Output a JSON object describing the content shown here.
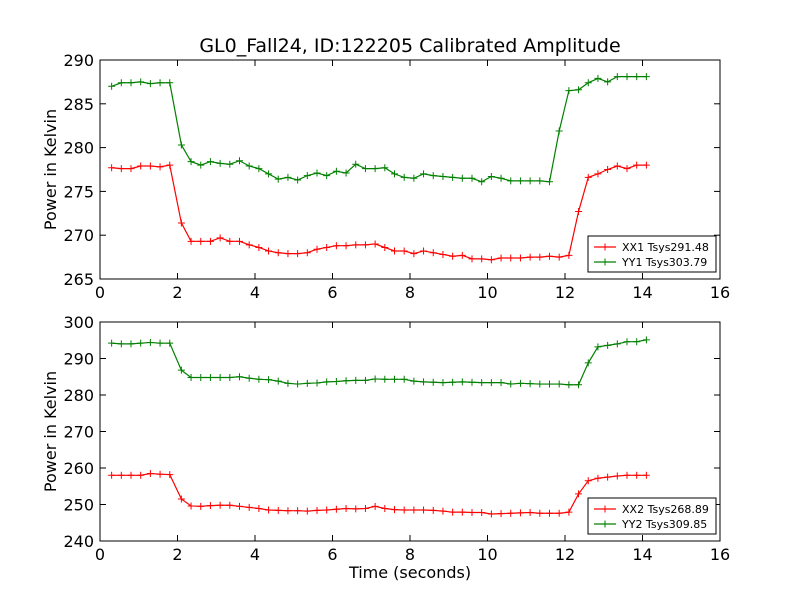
{
  "title": "GL0_Fall24, ID:122205 Calibrated Amplitude",
  "chart_data": [
    {
      "type": "line",
      "ylabel": "Power in Kelvin",
      "xlim": [
        0,
        16
      ],
      "ylim": [
        265,
        290
      ],
      "xticks": [
        0,
        2,
        4,
        6,
        8,
        10,
        12,
        14,
        16
      ],
      "yticks": [
        265,
        270,
        275,
        280,
        285,
        290
      ],
      "legend_loc": "lower-right",
      "series": [
        {
          "name": "XX1 Tsys291.48",
          "color": "#ff0000",
          "x": [
            0.3,
            0.55,
            0.8,
            1.05,
            1.3,
            1.55,
            1.8,
            2.1,
            2.35,
            2.6,
            2.85,
            3.1,
            3.35,
            3.6,
            3.85,
            4.1,
            4.35,
            4.6,
            4.85,
            5.1,
            5.35,
            5.6,
            5.85,
            6.1,
            6.35,
            6.6,
            6.85,
            7.1,
            7.35,
            7.6,
            7.85,
            8.1,
            8.35,
            8.6,
            8.85,
            9.1,
            9.35,
            9.6,
            9.85,
            10.1,
            10.35,
            10.6,
            10.85,
            11.1,
            11.35,
            11.6,
            11.85,
            12.1,
            12.35,
            12.6,
            12.85,
            13.1,
            13.35,
            13.6,
            13.85,
            14.1
          ],
          "y": [
            277.7,
            277.6,
            277.6,
            277.9,
            277.9,
            277.8,
            278.0,
            271.4,
            269.3,
            269.3,
            269.3,
            269.7,
            269.3,
            269.3,
            268.9,
            268.6,
            268.2,
            268.0,
            267.9,
            267.9,
            268.0,
            268.4,
            268.6,
            268.8,
            268.8,
            268.9,
            268.9,
            269.0,
            268.6,
            268.2,
            268.2,
            267.9,
            268.2,
            268.0,
            267.8,
            267.6,
            267.7,
            267.3,
            267.3,
            267.2,
            267.4,
            267.4,
            267.4,
            267.5,
            267.5,
            267.6,
            267.5,
            267.7,
            272.7,
            276.6,
            277.0,
            277.5,
            277.9,
            277.6,
            278.0,
            278.0
          ],
          "x_adj": [
            0.3,
            0.55,
            0.8,
            1.05,
            1.3,
            1.55,
            1.8
          ]
        },
        {
          "name": "YY1 Tsys303.79",
          "color": "#008000",
          "x": [
            0.3,
            0.55,
            0.8,
            1.05,
            1.3,
            1.55,
            1.8,
            2.1,
            2.35,
            2.6,
            2.85,
            3.1,
            3.35,
            3.6,
            3.85,
            4.1,
            4.35,
            4.6,
            4.85,
            5.1,
            5.35,
            5.6,
            5.85,
            6.1,
            6.35,
            6.6,
            6.85,
            7.1,
            7.35,
            7.6,
            7.85,
            8.1,
            8.35,
            8.6,
            8.85,
            9.1,
            9.35,
            9.6,
            9.85,
            10.1,
            10.35,
            10.6,
            10.85,
            11.1,
            11.35,
            11.6,
            11.85,
            12.1,
            12.35,
            12.6,
            12.85,
            13.1,
            13.35,
            13.6,
            13.85,
            14.1
          ],
          "y": [
            287.0,
            287.4,
            287.4,
            287.5,
            287.3,
            287.4,
            287.4,
            280.3,
            278.4,
            278.0,
            278.4,
            278.2,
            278.1,
            278.5,
            277.9,
            277.6,
            277.0,
            276.4,
            276.6,
            276.3,
            276.8,
            277.1,
            276.8,
            277.3,
            277.1,
            278.1,
            277.6,
            277.6,
            277.7,
            277.0,
            276.6,
            276.5,
            277.0,
            276.8,
            276.7,
            276.6,
            276.5,
            276.5,
            276.1,
            276.7,
            276.5,
            276.2,
            276.2,
            276.2,
            276.2,
            276.1,
            281.9,
            286.5,
            286.6,
            287.4,
            287.9,
            287.5,
            288.1,
            288.1,
            288.1,
            288.1
          ]
        }
      ]
    },
    {
      "type": "line",
      "xlabel": "Time (seconds)",
      "ylabel": "Power in Kelvin",
      "xlim": [
        0,
        16
      ],
      "ylim": [
        240,
        300
      ],
      "xticks": [
        0,
        2,
        4,
        6,
        8,
        10,
        12,
        14,
        16
      ],
      "yticks": [
        240,
        250,
        260,
        270,
        280,
        290,
        300
      ],
      "legend_loc": "lower-right",
      "series": [
        {
          "name": "XX2 Tsys268.89",
          "color": "#ff0000",
          "x": [
            0.3,
            0.55,
            0.8,
            1.05,
            1.3,
            1.55,
            1.8,
            2.1,
            2.35,
            2.6,
            2.85,
            3.1,
            3.35,
            3.6,
            3.85,
            4.1,
            4.35,
            4.6,
            4.85,
            5.1,
            5.35,
            5.6,
            5.85,
            6.1,
            6.35,
            6.6,
            6.85,
            7.1,
            7.35,
            7.6,
            7.85,
            8.1,
            8.35,
            8.6,
            8.85,
            9.1,
            9.35,
            9.6,
            9.85,
            10.1,
            10.35,
            10.6,
            10.85,
            11.1,
            11.35,
            11.6,
            11.85,
            12.1,
            12.35,
            12.6,
            12.85,
            13.1,
            13.35,
            13.6,
            13.85,
            14.1
          ],
          "y": [
            258.0,
            258.0,
            258.0,
            258.0,
            258.5,
            258.3,
            258.2,
            251.5,
            249.6,
            249.5,
            249.7,
            249.8,
            249.8,
            249.5,
            249.2,
            248.9,
            248.5,
            248.4,
            248.3,
            248.3,
            248.2,
            248.4,
            248.5,
            248.7,
            248.9,
            248.8,
            248.9,
            249.5,
            248.9,
            248.6,
            248.5,
            248.5,
            248.5,
            248.4,
            248.2,
            247.9,
            247.9,
            247.8,
            247.8,
            247.4,
            247.5,
            247.6,
            247.7,
            247.8,
            247.6,
            247.6,
            247.6,
            247.9,
            252.9,
            256.5,
            257.2,
            257.5,
            257.8,
            258.0,
            258.0,
            258.0
          ]
        },
        {
          "name": "YY2 Tsys309.85",
          "color": "#008000",
          "x": [
            0.3,
            0.55,
            0.8,
            1.05,
            1.3,
            1.55,
            1.8,
            2.1,
            2.35,
            2.6,
            2.85,
            3.1,
            3.35,
            3.6,
            3.85,
            4.1,
            4.35,
            4.6,
            4.85,
            5.1,
            5.35,
            5.6,
            5.85,
            6.1,
            6.35,
            6.6,
            6.85,
            7.1,
            7.35,
            7.6,
            7.85,
            8.1,
            8.35,
            8.6,
            8.85,
            9.1,
            9.35,
            9.6,
            9.85,
            10.1,
            10.35,
            10.6,
            10.85,
            11.1,
            11.35,
            11.6,
            11.85,
            12.1,
            12.35,
            12.6,
            12.85,
            13.1,
            13.35,
            13.6,
            13.85,
            14.1
          ],
          "y": [
            294.2,
            294.0,
            294.0,
            294.2,
            294.4,
            294.2,
            294.2,
            286.8,
            284.8,
            284.8,
            284.8,
            284.8,
            284.8,
            285.0,
            284.6,
            284.3,
            284.2,
            283.8,
            283.2,
            283.0,
            283.2,
            283.3,
            283.6,
            283.7,
            283.9,
            284.0,
            284.0,
            284.4,
            284.3,
            284.3,
            284.3,
            283.8,
            283.6,
            283.5,
            283.4,
            283.5,
            283.6,
            283.5,
            283.4,
            283.4,
            283.4,
            283.0,
            283.2,
            283.1,
            283.0,
            283.0,
            283.0,
            282.8,
            282.8,
            288.8,
            293.2,
            293.6,
            294.0,
            294.6,
            294.6,
            295.1
          ]
        }
      ]
    }
  ]
}
